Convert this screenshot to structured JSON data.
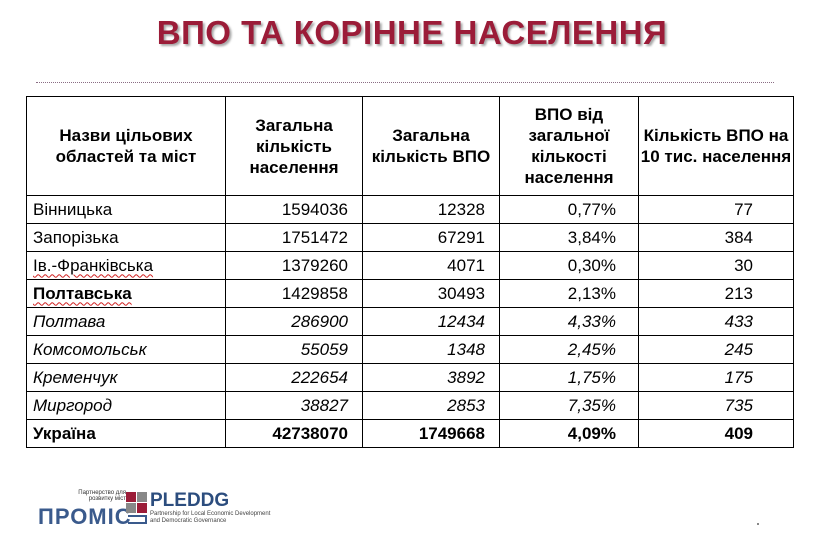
{
  "title": "ВПО ТА КОРІННЕ НАСЕЛЕННЯ",
  "table": {
    "headers": [
      "Назви цільових областей та міст",
      "Загальна кількість населення",
      "Загальна кількість ВПО",
      "ВПО від загальної кількості населення",
      "Кількість ВПО на  10 тис. населення"
    ],
    "rows": [
      {
        "name": "Вінницька",
        "pop": "1594036",
        "idp": "12328",
        "share": "0,77%",
        "per10k": "77",
        "style": "normal"
      },
      {
        "name": "Запорізька",
        "pop": "1751472",
        "idp": "67291",
        "share": "3,84%",
        "per10k": "384",
        "style": "normal"
      },
      {
        "name": "Ів.-Франківська",
        "pop": "1379260",
        "idp": "4071",
        "share": "0,30%",
        "per10k": "30",
        "style": "normal"
      },
      {
        "name": "Полтавська",
        "pop": "1429858",
        "idp": "30493",
        "share": "2,13%",
        "per10k": "213",
        "style": "bold-name"
      },
      {
        "name": "Полтава",
        "pop": "286900",
        "idp": "12434",
        "share": "4,33%",
        "per10k": "433",
        "style": "italic"
      },
      {
        "name": "Комсомольськ",
        "pop": "55059",
        "idp": "1348",
        "share": "2,45%",
        "per10k": "245",
        "style": "italic"
      },
      {
        "name": "Кременчук",
        "pop": "222654",
        "idp": "3892",
        "share": "1,75%",
        "per10k": "175",
        "style": "italic"
      },
      {
        "name": "Миргород",
        "pop": "38827",
        "idp": "2853",
        "share": "7,35%",
        "per10k": "735",
        "style": "italic"
      },
      {
        "name": "Україна",
        "pop": "42738070",
        "idp": "1749668",
        "share": "4,09%",
        "per10k": "409",
        "style": "bold"
      }
    ]
  },
  "logo": {
    "small_text": "Партнерство для розвитку міст",
    "promis": "ПРОМІС",
    "pleddg": "PLEDDG",
    "pleddg_sub": "Partnership for Local Economic Development and Democratic Governance",
    "colors": {
      "promis": "#3a5a8c",
      "mark_red": "#9b1c38",
      "mark_gray": "#888888"
    }
  },
  "colors": {
    "title": "#9b1c38",
    "divider": "#8a6d84"
  }
}
